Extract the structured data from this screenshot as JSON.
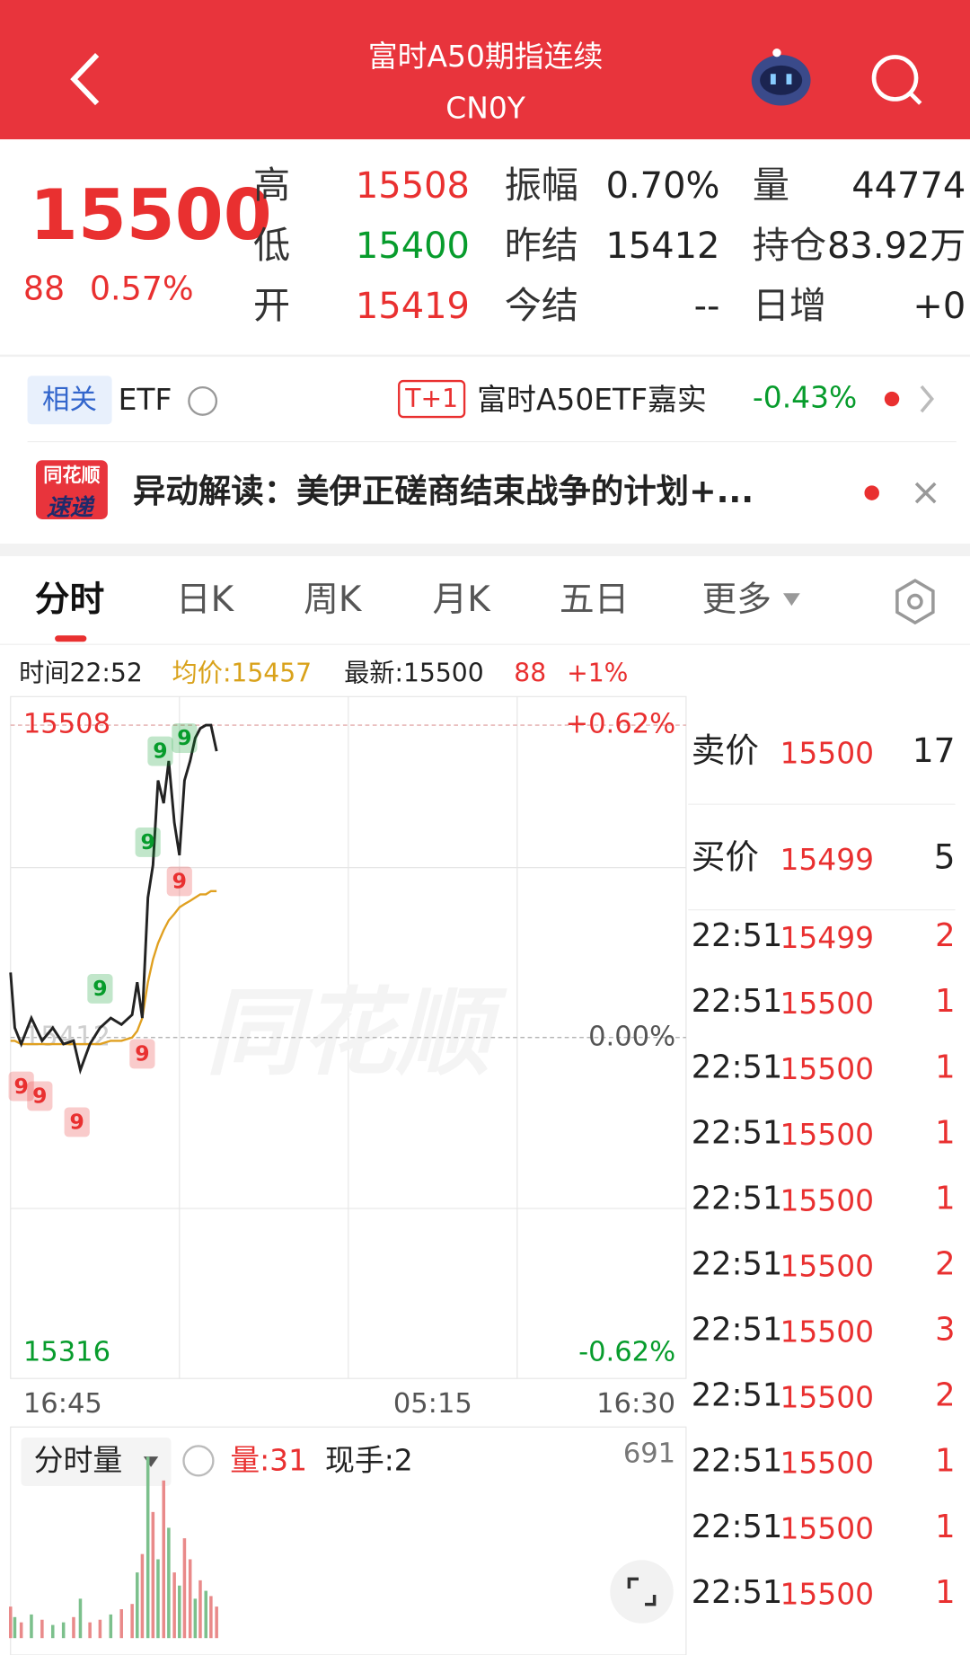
{
  "header": {
    "title": "富时A50期指连续",
    "subtitle": "CN0Y"
  },
  "quote": {
    "price": 15500,
    "change": 88,
    "change_pct": "0.57%",
    "fields": [
      {
        "label": "高",
        "value": 15508,
        "color": "#e93030"
      },
      {
        "label": "振幅",
        "value": "0.70%",
        "color": "#222222"
      },
      {
        "label": "量",
        "value": 44774,
        "color": "#222222"
      },
      {
        "label": "低",
        "value": 15400,
        "color": "#079c2c"
      },
      {
        "label": "昨结",
        "value": 15412,
        "color": "#222222"
      },
      {
        "label": "持仓",
        "value": "83.92万",
        "color": "#222222"
      },
      {
        "label": "开",
        "value": 15419,
        "color": "#e93030"
      },
      {
        "label": "今结",
        "value": "--",
        "color": "#222222"
      },
      {
        "label": "日增",
        "value": "+0",
        "color": "#222222"
      }
    ]
  },
  "etf": {
    "tag": "相关",
    "label": "ETF",
    "badge": "T+1",
    "name": "富时A50ETF嘉实",
    "change": "-0.43%"
  },
  "news": {
    "logo_top": "同花顺",
    "logo_bottom": "速递",
    "text": "异动解读：美伊正磋商结束战争的计划+..."
  },
  "tabs": [
    "分时",
    "日K",
    "周K",
    "月K",
    "五日",
    "更多"
  ],
  "chart_info": {
    "time": "时间22:52",
    "avg": "均价:15457",
    "latest": "最新:15500",
    "change": 88,
    "change_pct": "+1%"
  },
  "watermark": "同花顺",
  "chart_data": [
    {
      "type": "line",
      "x": [
        0,
        7.5,
        19,
        37,
        56,
        75,
        94,
        112,
        124,
        141,
        159,
        178,
        197,
        216,
        225,
        234,
        244,
        253,
        262,
        272,
        281,
        291,
        300,
        309,
        319,
        328,
        337,
        347,
        356,
        366
      ],
      "series": [
        {
          "color": "#222222",
          "values": [
            15432,
            15415,
            15410,
            15418,
            15411,
            15415,
            15410,
            15411,
            15402,
            15410,
            15415,
            15418,
            15416,
            15419,
            15429,
            15418,
            15455,
            15465,
            15491,
            15484,
            15497,
            15478,
            15468,
            15491,
            15497,
            15504,
            15507,
            15508,
            15508,
            15500
          ]
        },
        {
          "color": "#e0a020",
          "values": [
            15411,
            15411,
            15410,
            15410,
            15410,
            15410,
            15410,
            15410,
            15410,
            15410,
            15410,
            15411,
            15411,
            15412,
            15414,
            15418,
            15429,
            15436,
            15441,
            15445,
            15448,
            15450,
            15452,
            15453,
            15454,
            15455,
            15456,
            15456,
            15457,
            15457
          ]
        }
      ],
      "xlim": [
        0,
        1200
      ],
      "xticks": [
        {
          "value": 0,
          "label": "16:45"
        },
        {
          "value": 750,
          "label": "05:15"
        },
        {
          "value": 1200,
          "label": "16:30"
        }
      ],
      "ylim": [
        15316,
        15508
      ],
      "yticks": [
        15508,
        15412,
        15316
      ],
      "y2lim": [
        -0.62,
        0.62
      ],
      "y2ticks": [
        {
          "value": 0.62,
          "label": "+0.62%"
        },
        {
          "value": 0,
          "label": "0.00%"
        },
        {
          "value": -0.62,
          "label": "-0.62%"
        }
      ],
      "markers": [
        {
          "x": 19,
          "y": 15397,
          "label": "9",
          "color": "#e93030"
        },
        {
          "x": 52,
          "y": 15394,
          "label": "9",
          "color": "#e93030"
        },
        {
          "x": 118,
          "y": 15386,
          "label": "9",
          "color": "#e93030"
        },
        {
          "x": 234,
          "y": 15407,
          "label": "9",
          "color": "#e93030"
        },
        {
          "x": 300,
          "y": 15460,
          "label": "9",
          "color": "#e93030"
        },
        {
          "x": 159,
          "y": 15427,
          "label": "9",
          "color": "#079c2c"
        },
        {
          "x": 244,
          "y": 15472,
          "label": "9",
          "color": "#079c2c"
        },
        {
          "x": 266,
          "y": 15500,
          "label": "9",
          "color": "#079c2c"
        },
        {
          "x": 309,
          "y": 15504,
          "label": "9",
          "color": "#079c2c"
        }
      ]
    },
    {
      "type": "bar",
      "x": [
        0,
        7.5,
        19,
        37,
        56,
        75,
        94,
        112,
        124,
        141,
        159,
        178,
        197,
        216,
        225,
        234,
        244,
        253,
        262,
        272,
        281,
        291,
        300,
        309,
        319,
        328,
        337,
        347,
        356,
        366
      ],
      "values": [
        120,
        80,
        60,
        90,
        70,
        50,
        60,
        80,
        150,
        60,
        70,
        90,
        110,
        130,
        250,
        320,
        690,
        480,
        300,
        600,
        420,
        250,
        200,
        380,
        300,
        150,
        220,
        180,
        160,
        120
      ],
      "colors": [
        "#e98a8a",
        "#7cc08c",
        "#e98a8a",
        "#7cc08c",
        "#e98a8a",
        "#7cc08c",
        "#7cc08c",
        "#e98a8a",
        "#7cc08c",
        "#e98a8a",
        "#e98a8a",
        "#7cc08c",
        "#e98a8a",
        "#e98a8a",
        "#7cc08c",
        "#e98a8a",
        "#7cc08c",
        "#e98a8a",
        "#7cc08c",
        "#e98a8a",
        "#7cc08c",
        "#e98a8a",
        "#7cc08c",
        "#e98a8a",
        "#e98a8a",
        "#7cc08c",
        "#e98a8a",
        "#7cc08c",
        "#e98a8a",
        "#e98a8a"
      ],
      "xlim": [
        0,
        1200
      ],
      "ylim": [
        0,
        691
      ],
      "yticks": [
        691
      ]
    }
  ],
  "volume_info": {
    "selector": "分时量",
    "volume": "量:31",
    "hand": "现手:2"
  },
  "order_book": {
    "ask": {
      "label": "卖价",
      "price": 15500,
      "volume": 17
    },
    "bid": {
      "label": "买价",
      "price": 15499,
      "volume": 5
    },
    "trades": [
      {
        "time": "22:51",
        "price": 15499,
        "volume": 2
      },
      {
        "time": "22:51",
        "price": 15500,
        "volume": 1
      },
      {
        "time": "22:51",
        "price": 15500,
        "volume": 1
      },
      {
        "time": "22:51",
        "price": 15500,
        "volume": 1
      },
      {
        "time": "22:51",
        "price": 15500,
        "volume": 1
      },
      {
        "time": "22:51",
        "price": 15500,
        "volume": 2
      },
      {
        "time": "22:51",
        "price": 15500,
        "volume": 3
      },
      {
        "time": "22:51",
        "price": 15500,
        "volume": 2
      },
      {
        "time": "22:51",
        "price": 15500,
        "volume": 1
      },
      {
        "time": "22:51",
        "price": 15500,
        "volume": 1
      },
      {
        "time": "22:51",
        "price": 15500,
        "volume": 1
      }
    ]
  }
}
